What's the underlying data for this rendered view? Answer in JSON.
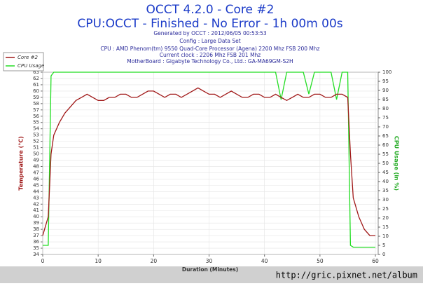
{
  "chart_data": {
    "type": "line",
    "title": "OCCT 4.2.0 - Core #2",
    "subtitle": "CPU:OCCT - Finished - No Error - 1h 00m 00s",
    "info": [
      "Generated by OCCT : 2012/06/05 00:53:53",
      "Config : Large Data Set",
      "CPU : AMD Phenom(tm) 9550 Quad-Core Processor (Agena) 2200 Mhz FSB 200 Mhz",
      "Current clock : 2206 Mhz FSB 201 Mhz",
      "MotherBoard : Gigabyte Technology Co., Ltd.: GA-MA69GM-S2H"
    ],
    "x_label": "Duration (Minutes)",
    "y_label": "Temperature (°C)",
    "y2_label": "CPU Usage (in %)",
    "watermark": "http://gric.pixnet.net/album",
    "x": [
      0,
      1,
      1.5,
      2,
      3,
      4,
      5,
      6,
      7,
      8,
      9,
      10,
      11,
      12,
      13,
      14,
      15,
      16,
      17,
      18,
      19,
      20,
      21,
      22,
      23,
      24,
      25,
      26,
      27,
      28,
      29,
      30,
      31,
      32,
      33,
      34,
      35,
      36,
      37,
      38,
      39,
      40,
      41,
      42,
      43,
      44,
      45,
      46,
      47,
      48,
      49,
      50,
      51,
      52,
      53,
      54,
      55,
      55.5,
      56,
      57,
      58,
      59,
      60
    ],
    "series": [
      {
        "name": "Core #2",
        "color": "#a01818",
        "values": [
          37,
          40,
          50,
          53,
          55,
          56.5,
          57.5,
          58.5,
          59,
          59.5,
          59,
          58.5,
          58.5,
          59,
          59,
          59.5,
          59.5,
          59,
          59,
          59.5,
          60,
          60,
          59.5,
          59,
          59.5,
          59.5,
          59,
          59.5,
          60,
          60.5,
          60,
          59.5,
          59.5,
          59,
          59.5,
          60,
          59.5,
          59,
          59,
          59.5,
          59.5,
          59,
          59,
          59.5,
          59,
          58.5,
          59,
          59.5,
          59,
          59,
          59.5,
          59.5,
          59,
          59,
          59.5,
          59.5,
          59,
          50,
          43,
          40,
          38,
          37,
          37
        ]
      },
      {
        "name": "CPU Usage",
        "color": "#22dd22",
        "axis": "y2",
        "values": [
          5,
          5,
          98,
          100,
          100,
          100,
          100,
          100,
          100,
          100,
          100,
          100,
          100,
          100,
          100,
          100,
          100,
          100,
          100,
          100,
          100,
          100,
          100,
          100,
          100,
          100,
          100,
          100,
          100,
          100,
          100,
          100,
          100,
          100,
          100,
          100,
          100,
          100,
          100,
          100,
          100,
          100,
          100,
          100,
          85,
          100,
          100,
          100,
          100,
          88,
          100,
          100,
          100,
          100,
          85,
          100,
          100,
          5,
          4,
          4,
          4,
          4,
          4
        ]
      }
    ],
    "xlim": [
      0,
      60.5
    ],
    "xticks": [
      0,
      10,
      20,
      30,
      40,
      50,
      60
    ],
    "ylim": [
      34,
      63
    ],
    "yticks": [
      34,
      35,
      36,
      37,
      38,
      39,
      40,
      41,
      42,
      43,
      44,
      45,
      46,
      47,
      48,
      49,
      50,
      51,
      52,
      53,
      54,
      55,
      56,
      57,
      58,
      59,
      60,
      61,
      62,
      63
    ],
    "y2lim": [
      0,
      100
    ],
    "y2ticks": [
      0,
      5,
      10,
      15,
      20,
      25,
      30,
      35,
      40,
      45,
      50,
      55,
      60,
      65,
      70,
      75,
      80,
      85,
      90,
      95,
      100
    ],
    "grid": true,
    "legend": "top-left"
  }
}
